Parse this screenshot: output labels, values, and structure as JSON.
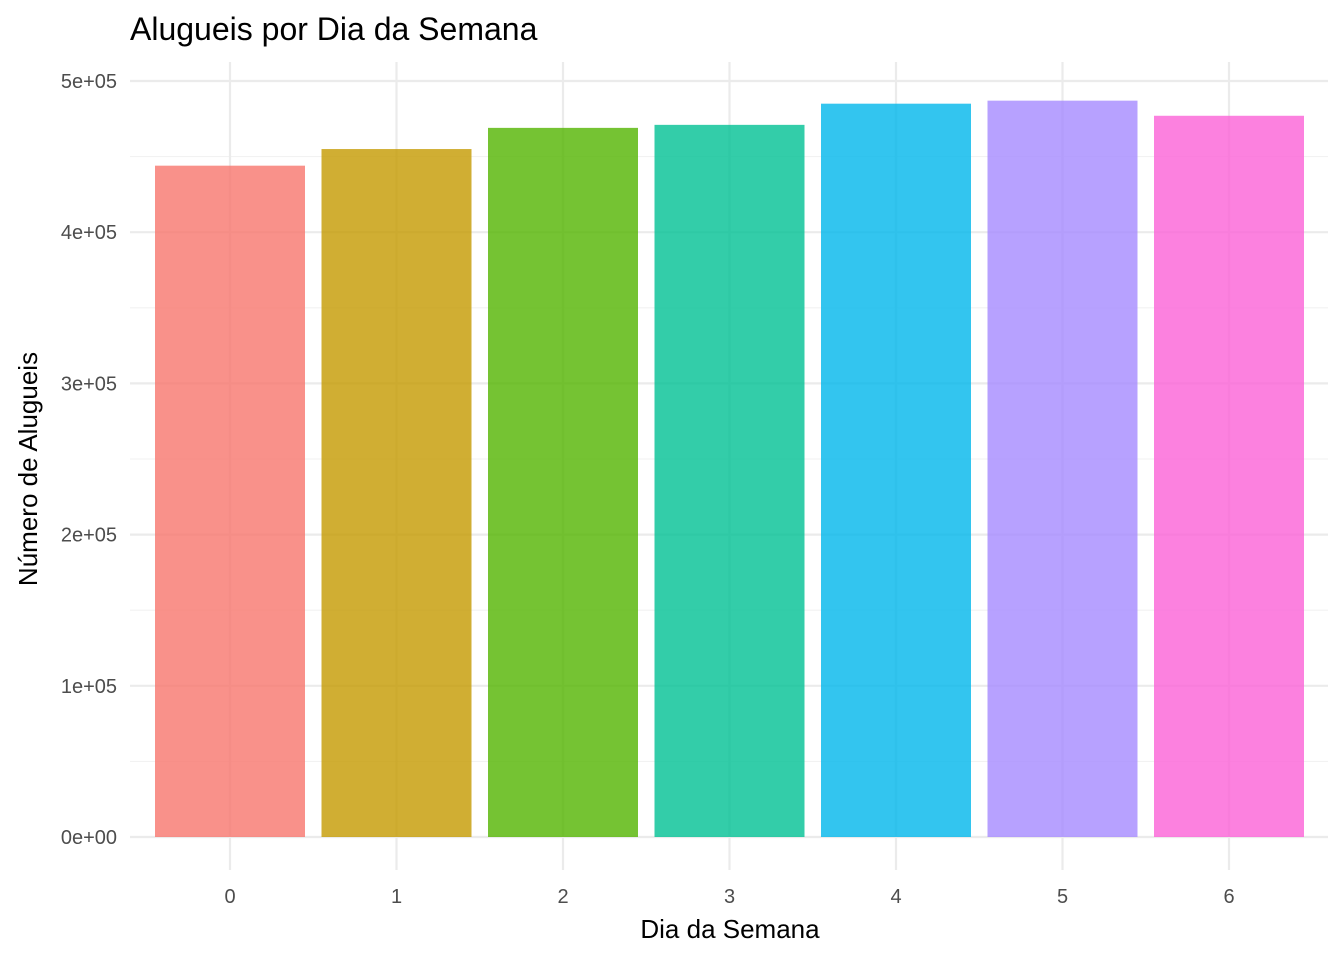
{
  "chart_data": {
    "type": "bar",
    "title": "Alugueis por Dia da Semana",
    "xlabel": "Dia da Semana",
    "ylabel": "Número de Alugueis",
    "categories": [
      "0",
      "1",
      "2",
      "3",
      "4",
      "5",
      "6"
    ],
    "values": [
      444000,
      455000,
      469000,
      471000,
      485000,
      487000,
      477000
    ],
    "colors": [
      "#F8766D",
      "#C49A00",
      "#53B400",
      "#00C094",
      "#00B6EB",
      "#A58AFF",
      "#FB61D7"
    ],
    "ylim": [
      0,
      500000
    ],
    "yticks": [
      0,
      100000,
      200000,
      300000,
      400000,
      500000
    ],
    "ytick_labels": [
      "0e+00",
      "1e+05",
      "2e+05",
      "3e+05",
      "4e+05",
      "5e+05"
    ],
    "grid": true,
    "legend": "none"
  }
}
